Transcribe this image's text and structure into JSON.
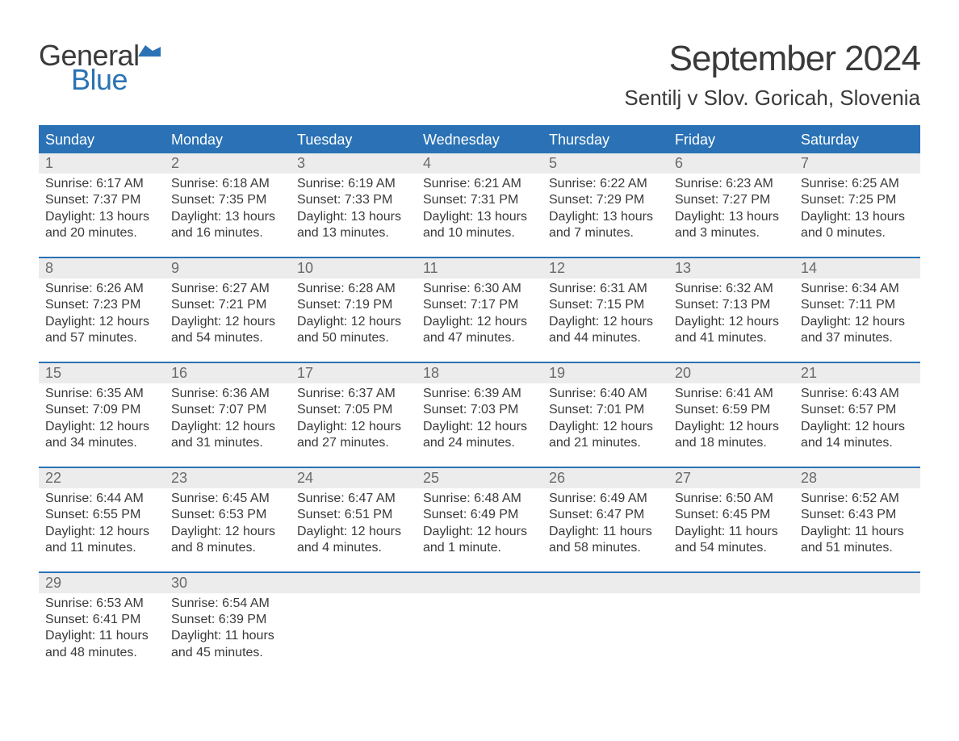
{
  "logo": {
    "general": "General",
    "blue": "Blue",
    "flag_color": "#2a72b5"
  },
  "title": "September 2024",
  "location": "Sentilj v Slov. Goricah, Slovenia",
  "header_bg": "#2a72b5",
  "header_fg": "#ffffff",
  "strip_bg": "#ececec",
  "text_color": "#3a3a3a",
  "weekdays": [
    "Sunday",
    "Monday",
    "Tuesday",
    "Wednesday",
    "Thursday",
    "Friday",
    "Saturday"
  ],
  "weeks": [
    [
      {
        "n": "1",
        "sunrise": "Sunrise: 6:17 AM",
        "sunset": "Sunset: 7:37 PM",
        "d1": "Daylight: 13 hours",
        "d2": "and 20 minutes."
      },
      {
        "n": "2",
        "sunrise": "Sunrise: 6:18 AM",
        "sunset": "Sunset: 7:35 PM",
        "d1": "Daylight: 13 hours",
        "d2": "and 16 minutes."
      },
      {
        "n": "3",
        "sunrise": "Sunrise: 6:19 AM",
        "sunset": "Sunset: 7:33 PM",
        "d1": "Daylight: 13 hours",
        "d2": "and 13 minutes."
      },
      {
        "n": "4",
        "sunrise": "Sunrise: 6:21 AM",
        "sunset": "Sunset: 7:31 PM",
        "d1": "Daylight: 13 hours",
        "d2": "and 10 minutes."
      },
      {
        "n": "5",
        "sunrise": "Sunrise: 6:22 AM",
        "sunset": "Sunset: 7:29 PM",
        "d1": "Daylight: 13 hours",
        "d2": "and 7 minutes."
      },
      {
        "n": "6",
        "sunrise": "Sunrise: 6:23 AM",
        "sunset": "Sunset: 7:27 PM",
        "d1": "Daylight: 13 hours",
        "d2": "and 3 minutes."
      },
      {
        "n": "7",
        "sunrise": "Sunrise: 6:25 AM",
        "sunset": "Sunset: 7:25 PM",
        "d1": "Daylight: 13 hours",
        "d2": "and 0 minutes."
      }
    ],
    [
      {
        "n": "8",
        "sunrise": "Sunrise: 6:26 AM",
        "sunset": "Sunset: 7:23 PM",
        "d1": "Daylight: 12 hours",
        "d2": "and 57 minutes."
      },
      {
        "n": "9",
        "sunrise": "Sunrise: 6:27 AM",
        "sunset": "Sunset: 7:21 PM",
        "d1": "Daylight: 12 hours",
        "d2": "and 54 minutes."
      },
      {
        "n": "10",
        "sunrise": "Sunrise: 6:28 AM",
        "sunset": "Sunset: 7:19 PM",
        "d1": "Daylight: 12 hours",
        "d2": "and 50 minutes."
      },
      {
        "n": "11",
        "sunrise": "Sunrise: 6:30 AM",
        "sunset": "Sunset: 7:17 PM",
        "d1": "Daylight: 12 hours",
        "d2": "and 47 minutes."
      },
      {
        "n": "12",
        "sunrise": "Sunrise: 6:31 AM",
        "sunset": "Sunset: 7:15 PM",
        "d1": "Daylight: 12 hours",
        "d2": "and 44 minutes."
      },
      {
        "n": "13",
        "sunrise": "Sunrise: 6:32 AM",
        "sunset": "Sunset: 7:13 PM",
        "d1": "Daylight: 12 hours",
        "d2": "and 41 minutes."
      },
      {
        "n": "14",
        "sunrise": "Sunrise: 6:34 AM",
        "sunset": "Sunset: 7:11 PM",
        "d1": "Daylight: 12 hours",
        "d2": "and 37 minutes."
      }
    ],
    [
      {
        "n": "15",
        "sunrise": "Sunrise: 6:35 AM",
        "sunset": "Sunset: 7:09 PM",
        "d1": "Daylight: 12 hours",
        "d2": "and 34 minutes."
      },
      {
        "n": "16",
        "sunrise": "Sunrise: 6:36 AM",
        "sunset": "Sunset: 7:07 PM",
        "d1": "Daylight: 12 hours",
        "d2": "and 31 minutes."
      },
      {
        "n": "17",
        "sunrise": "Sunrise: 6:37 AM",
        "sunset": "Sunset: 7:05 PM",
        "d1": "Daylight: 12 hours",
        "d2": "and 27 minutes."
      },
      {
        "n": "18",
        "sunrise": "Sunrise: 6:39 AM",
        "sunset": "Sunset: 7:03 PM",
        "d1": "Daylight: 12 hours",
        "d2": "and 24 minutes."
      },
      {
        "n": "19",
        "sunrise": "Sunrise: 6:40 AM",
        "sunset": "Sunset: 7:01 PM",
        "d1": "Daylight: 12 hours",
        "d2": "and 21 minutes."
      },
      {
        "n": "20",
        "sunrise": "Sunrise: 6:41 AM",
        "sunset": "Sunset: 6:59 PM",
        "d1": "Daylight: 12 hours",
        "d2": "and 18 minutes."
      },
      {
        "n": "21",
        "sunrise": "Sunrise: 6:43 AM",
        "sunset": "Sunset: 6:57 PM",
        "d1": "Daylight: 12 hours",
        "d2": "and 14 minutes."
      }
    ],
    [
      {
        "n": "22",
        "sunrise": "Sunrise: 6:44 AM",
        "sunset": "Sunset: 6:55 PM",
        "d1": "Daylight: 12 hours",
        "d2": "and 11 minutes."
      },
      {
        "n": "23",
        "sunrise": "Sunrise: 6:45 AM",
        "sunset": "Sunset: 6:53 PM",
        "d1": "Daylight: 12 hours",
        "d2": "and 8 minutes."
      },
      {
        "n": "24",
        "sunrise": "Sunrise: 6:47 AM",
        "sunset": "Sunset: 6:51 PM",
        "d1": "Daylight: 12 hours",
        "d2": "and 4 minutes."
      },
      {
        "n": "25",
        "sunrise": "Sunrise: 6:48 AM",
        "sunset": "Sunset: 6:49 PM",
        "d1": "Daylight: 12 hours",
        "d2": "and 1 minute."
      },
      {
        "n": "26",
        "sunrise": "Sunrise: 6:49 AM",
        "sunset": "Sunset: 6:47 PM",
        "d1": "Daylight: 11 hours",
        "d2": "and 58 minutes."
      },
      {
        "n": "27",
        "sunrise": "Sunrise: 6:50 AM",
        "sunset": "Sunset: 6:45 PM",
        "d1": "Daylight: 11 hours",
        "d2": "and 54 minutes."
      },
      {
        "n": "28",
        "sunrise": "Sunrise: 6:52 AM",
        "sunset": "Sunset: 6:43 PM",
        "d1": "Daylight: 11 hours",
        "d2": "and 51 minutes."
      }
    ],
    [
      {
        "n": "29",
        "sunrise": "Sunrise: 6:53 AM",
        "sunset": "Sunset: 6:41 PM",
        "d1": "Daylight: 11 hours",
        "d2": "and 48 minutes."
      },
      {
        "n": "30",
        "sunrise": "Sunrise: 6:54 AM",
        "sunset": "Sunset: 6:39 PM",
        "d1": "Daylight: 11 hours",
        "d2": "and 45 minutes."
      },
      {
        "empty": true
      },
      {
        "empty": true
      },
      {
        "empty": true
      },
      {
        "empty": true
      },
      {
        "empty": true
      }
    ]
  ]
}
